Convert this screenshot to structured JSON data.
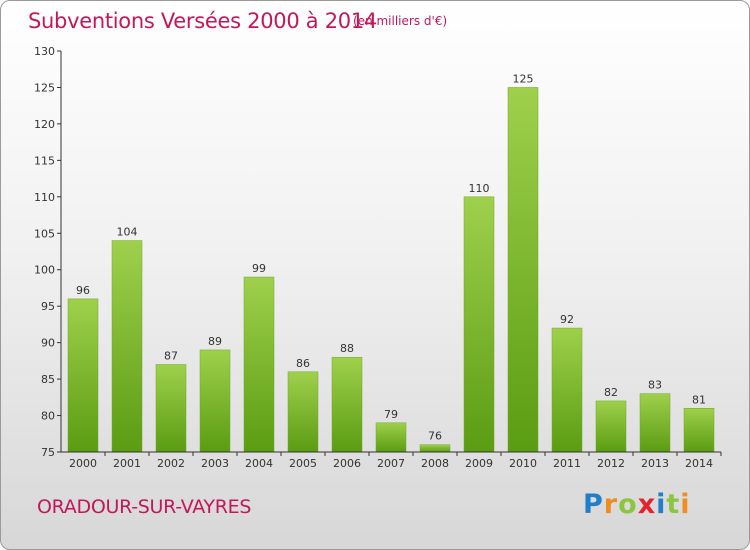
{
  "header": {
    "title": "Subventions Versées 2000 à 2014",
    "subtitle": "(en milliers d'€)"
  },
  "footer": {
    "commune": "ORADOUR-SUR-VAYRES",
    "logo": {
      "text": "Proxiti",
      "letters": [
        {
          "ch": "P",
          "color": "#1f7fc8"
        },
        {
          "ch": "r",
          "color": "#f28c1c"
        },
        {
          "ch": "o",
          "color": "#8cc63f"
        },
        {
          "ch": "x",
          "color": "#e8222b"
        },
        {
          "ch": "i",
          "color": "#1f7fc8"
        },
        {
          "ch": "t",
          "color": "#8cc63f"
        },
        {
          "ch": "i",
          "color": "#f28c1c"
        }
      ]
    }
  },
  "colors": {
    "title": "#c2185b",
    "bar_light": "#9fd04c",
    "bar_dark": "#5a9c12",
    "axis": "#333333"
  },
  "chart_data": {
    "type": "bar",
    "title": "Subventions Versées 2000 à 2014",
    "subtitle": "(en milliers d'€)",
    "categories": [
      "2000",
      "2001",
      "2002",
      "2003",
      "2004",
      "2005",
      "2006",
      "2007",
      "2008",
      "2009",
      "2010",
      "2011",
      "2012",
      "2013",
      "2014"
    ],
    "values": [
      96,
      104,
      87,
      89,
      99,
      86,
      88,
      79,
      76,
      110,
      125,
      92,
      82,
      83,
      81
    ],
    "data_labels": [
      "96",
      "104",
      "87",
      "89",
      "99",
      "86",
      "88",
      "79",
      "76",
      "110",
      "125",
      "92",
      "82",
      "83",
      "81"
    ],
    "xlabel": "",
    "ylabel": "",
    "ylim": [
      75,
      130
    ],
    "yticks": [
      75,
      80,
      85,
      90,
      95,
      100,
      105,
      110,
      115,
      120,
      125,
      130
    ],
    "grid": false,
    "legend": "none"
  }
}
